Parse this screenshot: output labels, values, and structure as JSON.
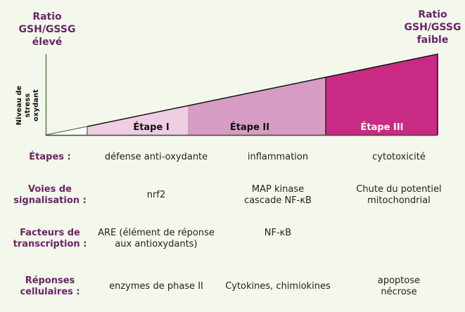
{
  "header": {
    "left_ratio": [
      "Ratio",
      "GSH/GSSG",
      "élevé"
    ],
    "right_ratio": [
      "Ratio",
      "GSH/GSSG",
      "faible"
    ],
    "y_axis_label": [
      "Niveau de stress",
      "oxydant"
    ]
  },
  "stages": [
    {
      "label": "Étape I",
      "color": "#efcde3"
    },
    {
      "label": "Étape II",
      "color": "#d69cc3"
    },
    {
      "label": "Étape III",
      "color": "#c92a84"
    }
  ],
  "rows": [
    {
      "label": [
        "Étapes :"
      ],
      "cells": [
        [
          "défense anti-oxydante"
        ],
        [
          "inflammation"
        ],
        [
          "cytotoxicité"
        ]
      ]
    },
    {
      "label": [
        "Voies de",
        "signalisation :"
      ],
      "cells": [
        [
          "nrf2"
        ],
        [
          "MAP kinase",
          "cascade NF-κB"
        ],
        [
          "Chute du potentiel",
          "mitochondrial"
        ]
      ]
    },
    {
      "label": [
        "Facteurs de",
        "transcription :"
      ],
      "cells": [
        [
          "ARE (élément de réponse",
          "aux antioxydants)"
        ],
        [
          "NF-κB"
        ],
        []
      ]
    },
    {
      "label": [
        "Réponses",
        "cellulaires :"
      ],
      "cells": [
        [
          "enzymes de phase II"
        ],
        [
          "Cytokines, chimiokines"
        ],
        [
          "apoptose",
          "nécrose"
        ]
      ]
    }
  ],
  "colors": {
    "accent": "#6b2466",
    "background": "#f3f7ec"
  }
}
